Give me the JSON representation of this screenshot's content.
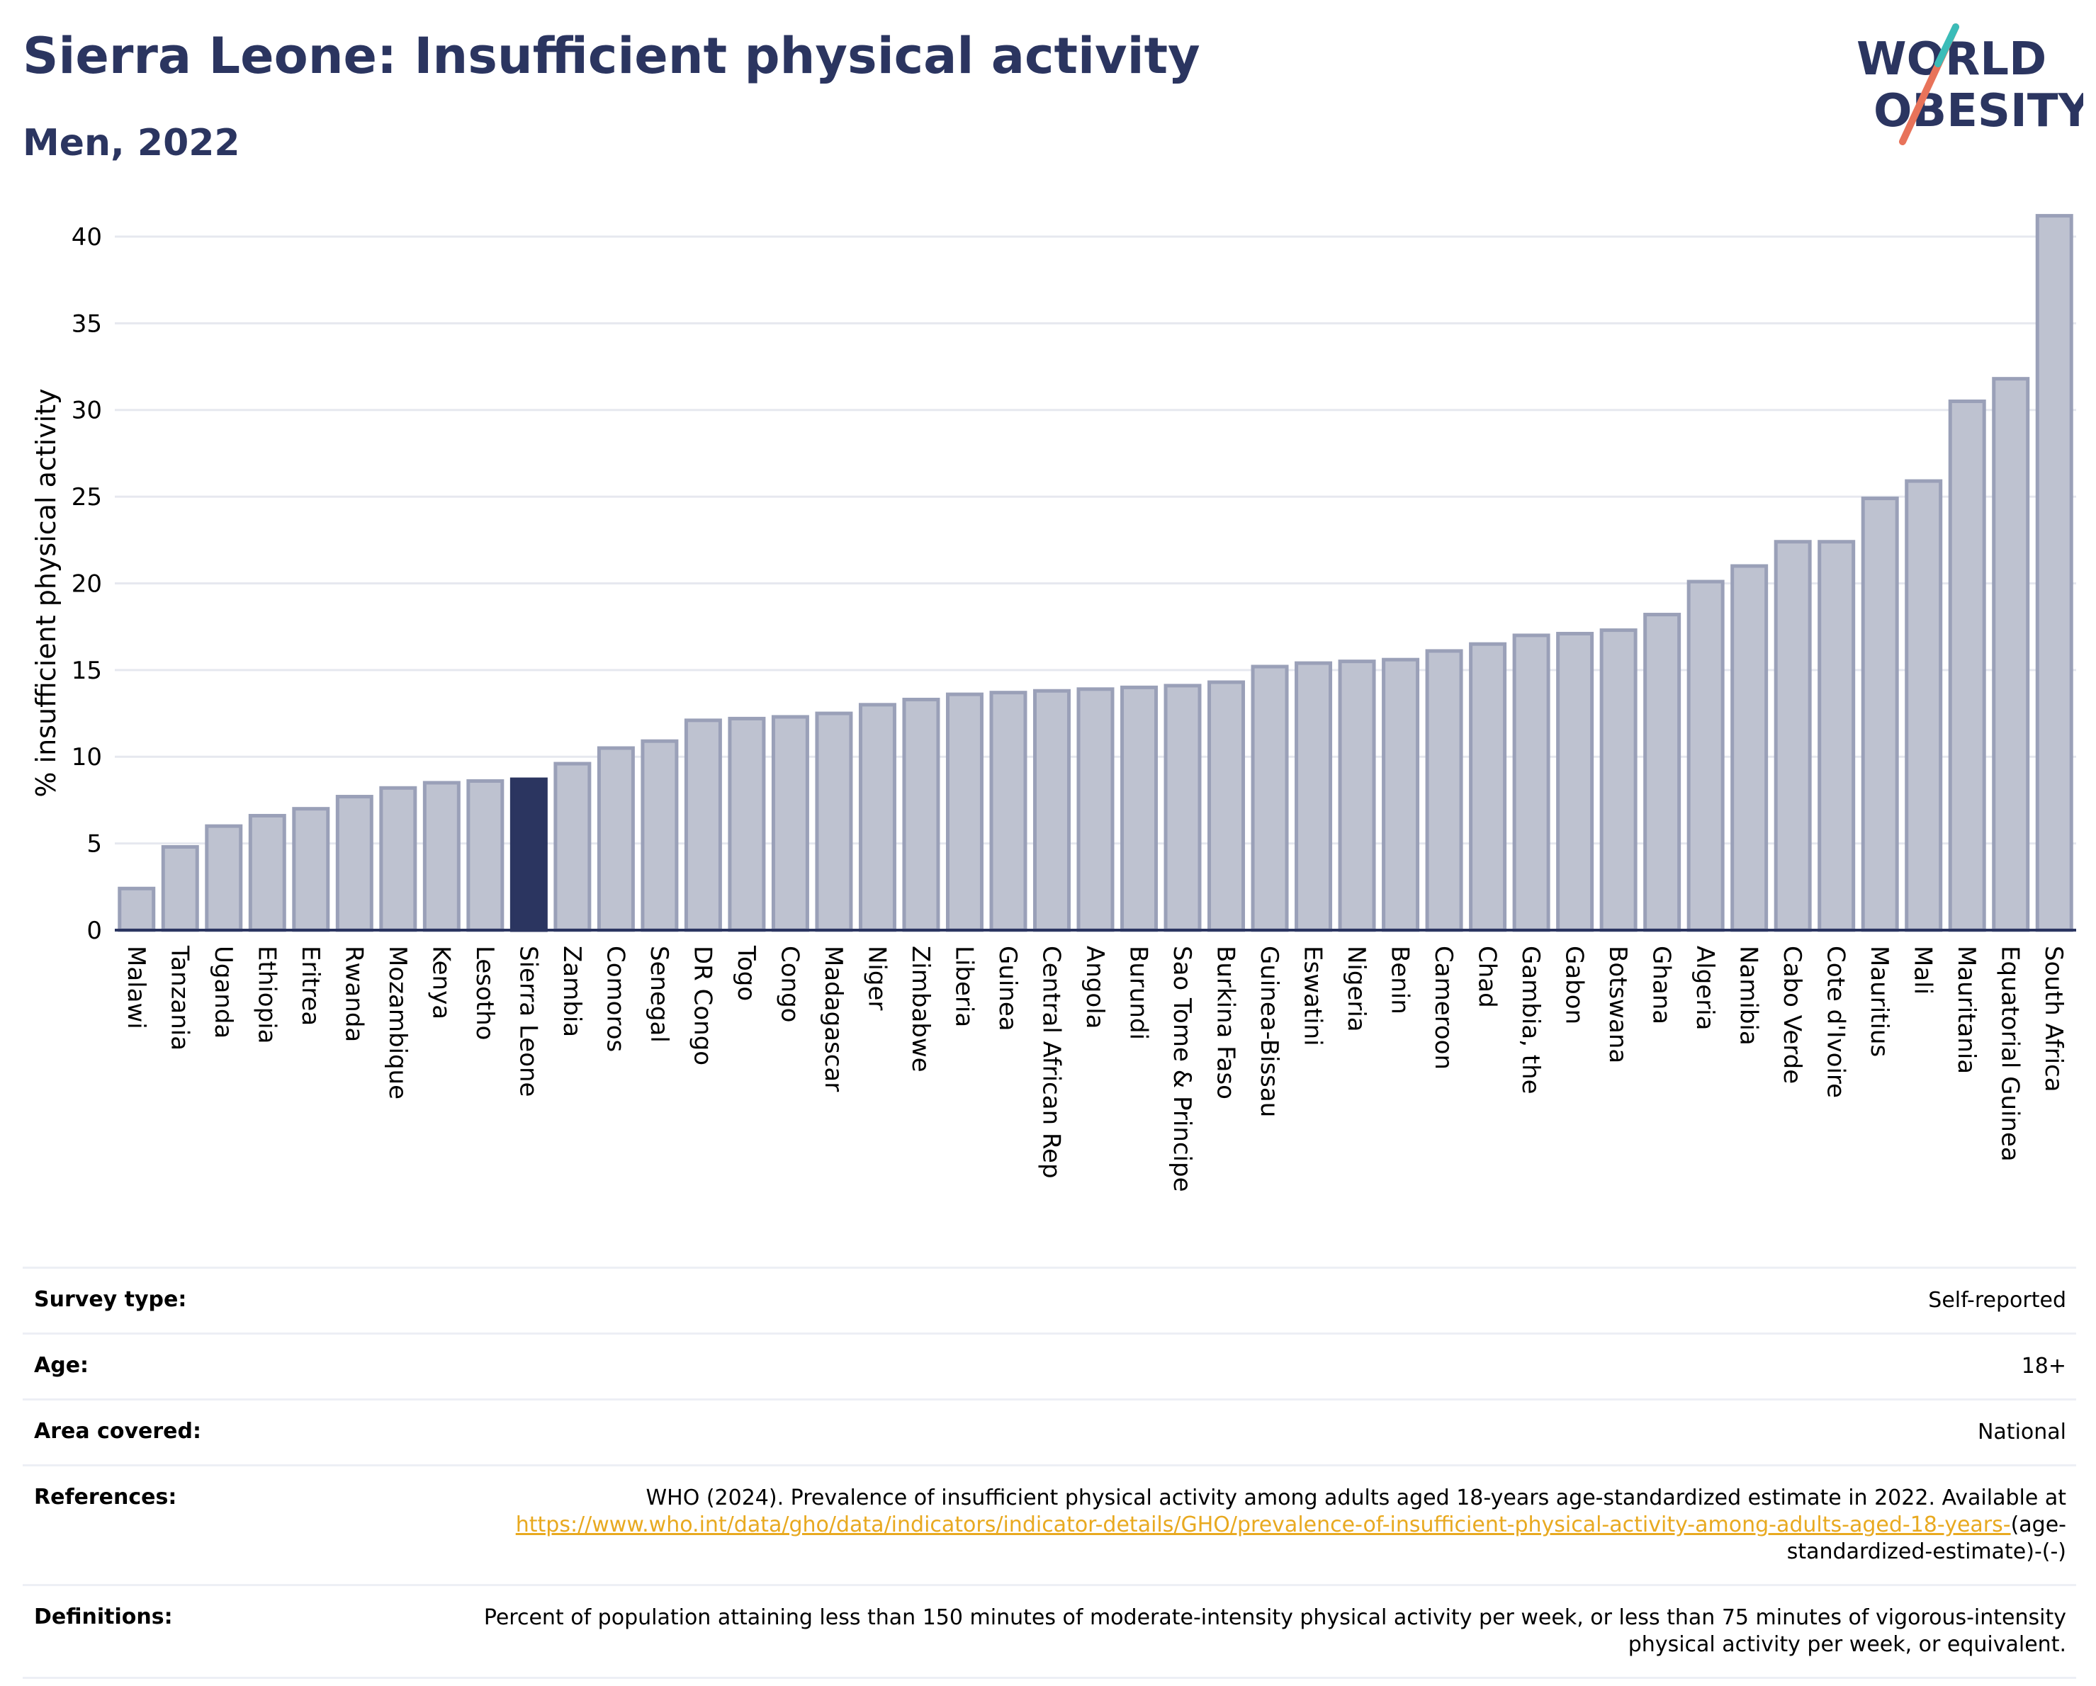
{
  "header": {
    "title": "Sierra Leone: Insufficient physical activity",
    "subtitle": "Men, 2022",
    "logo_line1": "WORLD",
    "logo_line2": "OBESITY"
  },
  "chart_data": {
    "type": "bar",
    "title": "Sierra Leone: Insufficient physical activity",
    "subtitle": "Men, 2022",
    "xlabel": "",
    "ylabel": "% insufficient physical activity",
    "ylim": [
      0,
      42
    ],
    "yticks": [
      0,
      5,
      10,
      15,
      20,
      25,
      30,
      35,
      40
    ],
    "grid": true,
    "highlight": "Sierra Leone",
    "colors": {
      "bar": "#bec2d0",
      "bar_edge": "#9aa0b8",
      "highlight": "#2b3560",
      "grid": "#e6e8ef"
    },
    "categories": [
      "Malawi",
      "Tanzania",
      "Uganda",
      "Ethiopia",
      "Eritrea",
      "Rwanda",
      "Mozambique",
      "Kenya",
      "Lesotho",
      "Sierra Leone",
      "Zambia",
      "Comoros",
      "Senegal",
      "DR Congo",
      "Togo",
      "Congo",
      "Madagascar",
      "Niger",
      "Zimbabwe",
      "Liberia",
      "Guinea",
      "Central African Rep",
      "Angola",
      "Burundi",
      "Sao Tome & Principe",
      "Burkina Faso",
      "Guinea-Bissau",
      "Eswatini",
      "Nigeria",
      "Benin",
      "Cameroon",
      "Chad",
      "Gambia, the",
      "Gabon",
      "Botswana",
      "Ghana",
      "Algeria",
      "Namibia",
      "Cabo Verde",
      "Cote d'Ivoire",
      "Mauritius",
      "Mali",
      "Mauritania",
      "Equatorial Guinea",
      "South Africa"
    ],
    "values": [
      2.4,
      4.8,
      6.0,
      6.6,
      7.0,
      7.7,
      8.2,
      8.5,
      8.6,
      8.7,
      9.6,
      10.5,
      10.9,
      12.1,
      12.2,
      12.3,
      12.5,
      13.0,
      13.3,
      13.6,
      13.7,
      13.8,
      13.9,
      14.0,
      14.1,
      14.3,
      15.2,
      15.4,
      15.5,
      15.6,
      16.1,
      16.5,
      17.0,
      17.1,
      17.3,
      18.2,
      20.1,
      21.0,
      22.4,
      22.4,
      24.9,
      25.9,
      30.5,
      31.8,
      41.2
    ]
  },
  "metadata": [
    {
      "label": "Survey type:",
      "value": "Self-reported"
    },
    {
      "label": "Age:",
      "value": "18+"
    },
    {
      "label": "Area covered:",
      "value": "National"
    },
    {
      "label": "References:",
      "value_prefix": "WHO (2024). Prevalence of insufficient physical activity among adults aged 18-years age-standardized estimate in 2022. Available at ",
      "link": "https://www.who.int/data/gho/data/indicators/indicator-details/GHO/prevalence-of-insufficient-physical-activity-among-adults-aged-18-years-",
      "value_suffix": "(age-standardized-estimate)-(-)"
    },
    {
      "label": "Definitions:",
      "value": "Percent of population attaining less than 150 minutes of moderate-intensity physical activity per week, or less than 75 minutes of vigorous-intensity physical activity per week, or equivalent."
    }
  ]
}
